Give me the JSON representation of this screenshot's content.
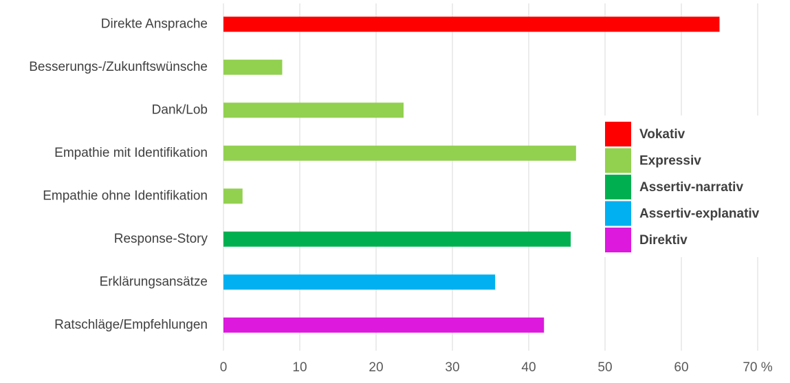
{
  "chart_data": {
    "type": "bar",
    "orientation": "horizontal",
    "categories": [
      "Direkte Ansprache",
      "Besserungs-/Zukunftswünsche",
      "Dank/Lob",
      "Empathie mit Identifikation",
      "Empathie ohne Identifikation",
      "Response-Story",
      "Erklärungsansätze",
      "Ratschläge/Empfehlungen"
    ],
    "series": [
      {
        "name": "Vokativ",
        "color": "#ff0000",
        "values": [
          65.0,
          null,
          null,
          null,
          null,
          null,
          null,
          null
        ]
      },
      {
        "name": "Expressiv",
        "color": "#92d050",
        "values": [
          null,
          7.7,
          23.6,
          46.2,
          2.5,
          null,
          null,
          null
        ]
      },
      {
        "name": "Assertiv-narrativ",
        "color": "#00b050",
        "values": [
          null,
          null,
          null,
          null,
          null,
          45.5,
          null,
          null
        ]
      },
      {
        "name": "Assertiv-explanativ",
        "color": "#00b0f0",
        "values": [
          null,
          null,
          null,
          null,
          null,
          null,
          35.6,
          null
        ]
      },
      {
        "name": "Direktiv",
        "color": "#dc19dc",
        "values": [
          null,
          null,
          null,
          null,
          null,
          null,
          null,
          42.0
        ]
      }
    ],
    "xlim": [
      0,
      70
    ],
    "xticks": [
      0,
      10,
      20,
      30,
      40,
      50,
      60,
      {
        "value": 70,
        "label": "70 %"
      }
    ],
    "grid": true,
    "legend": "right"
  }
}
